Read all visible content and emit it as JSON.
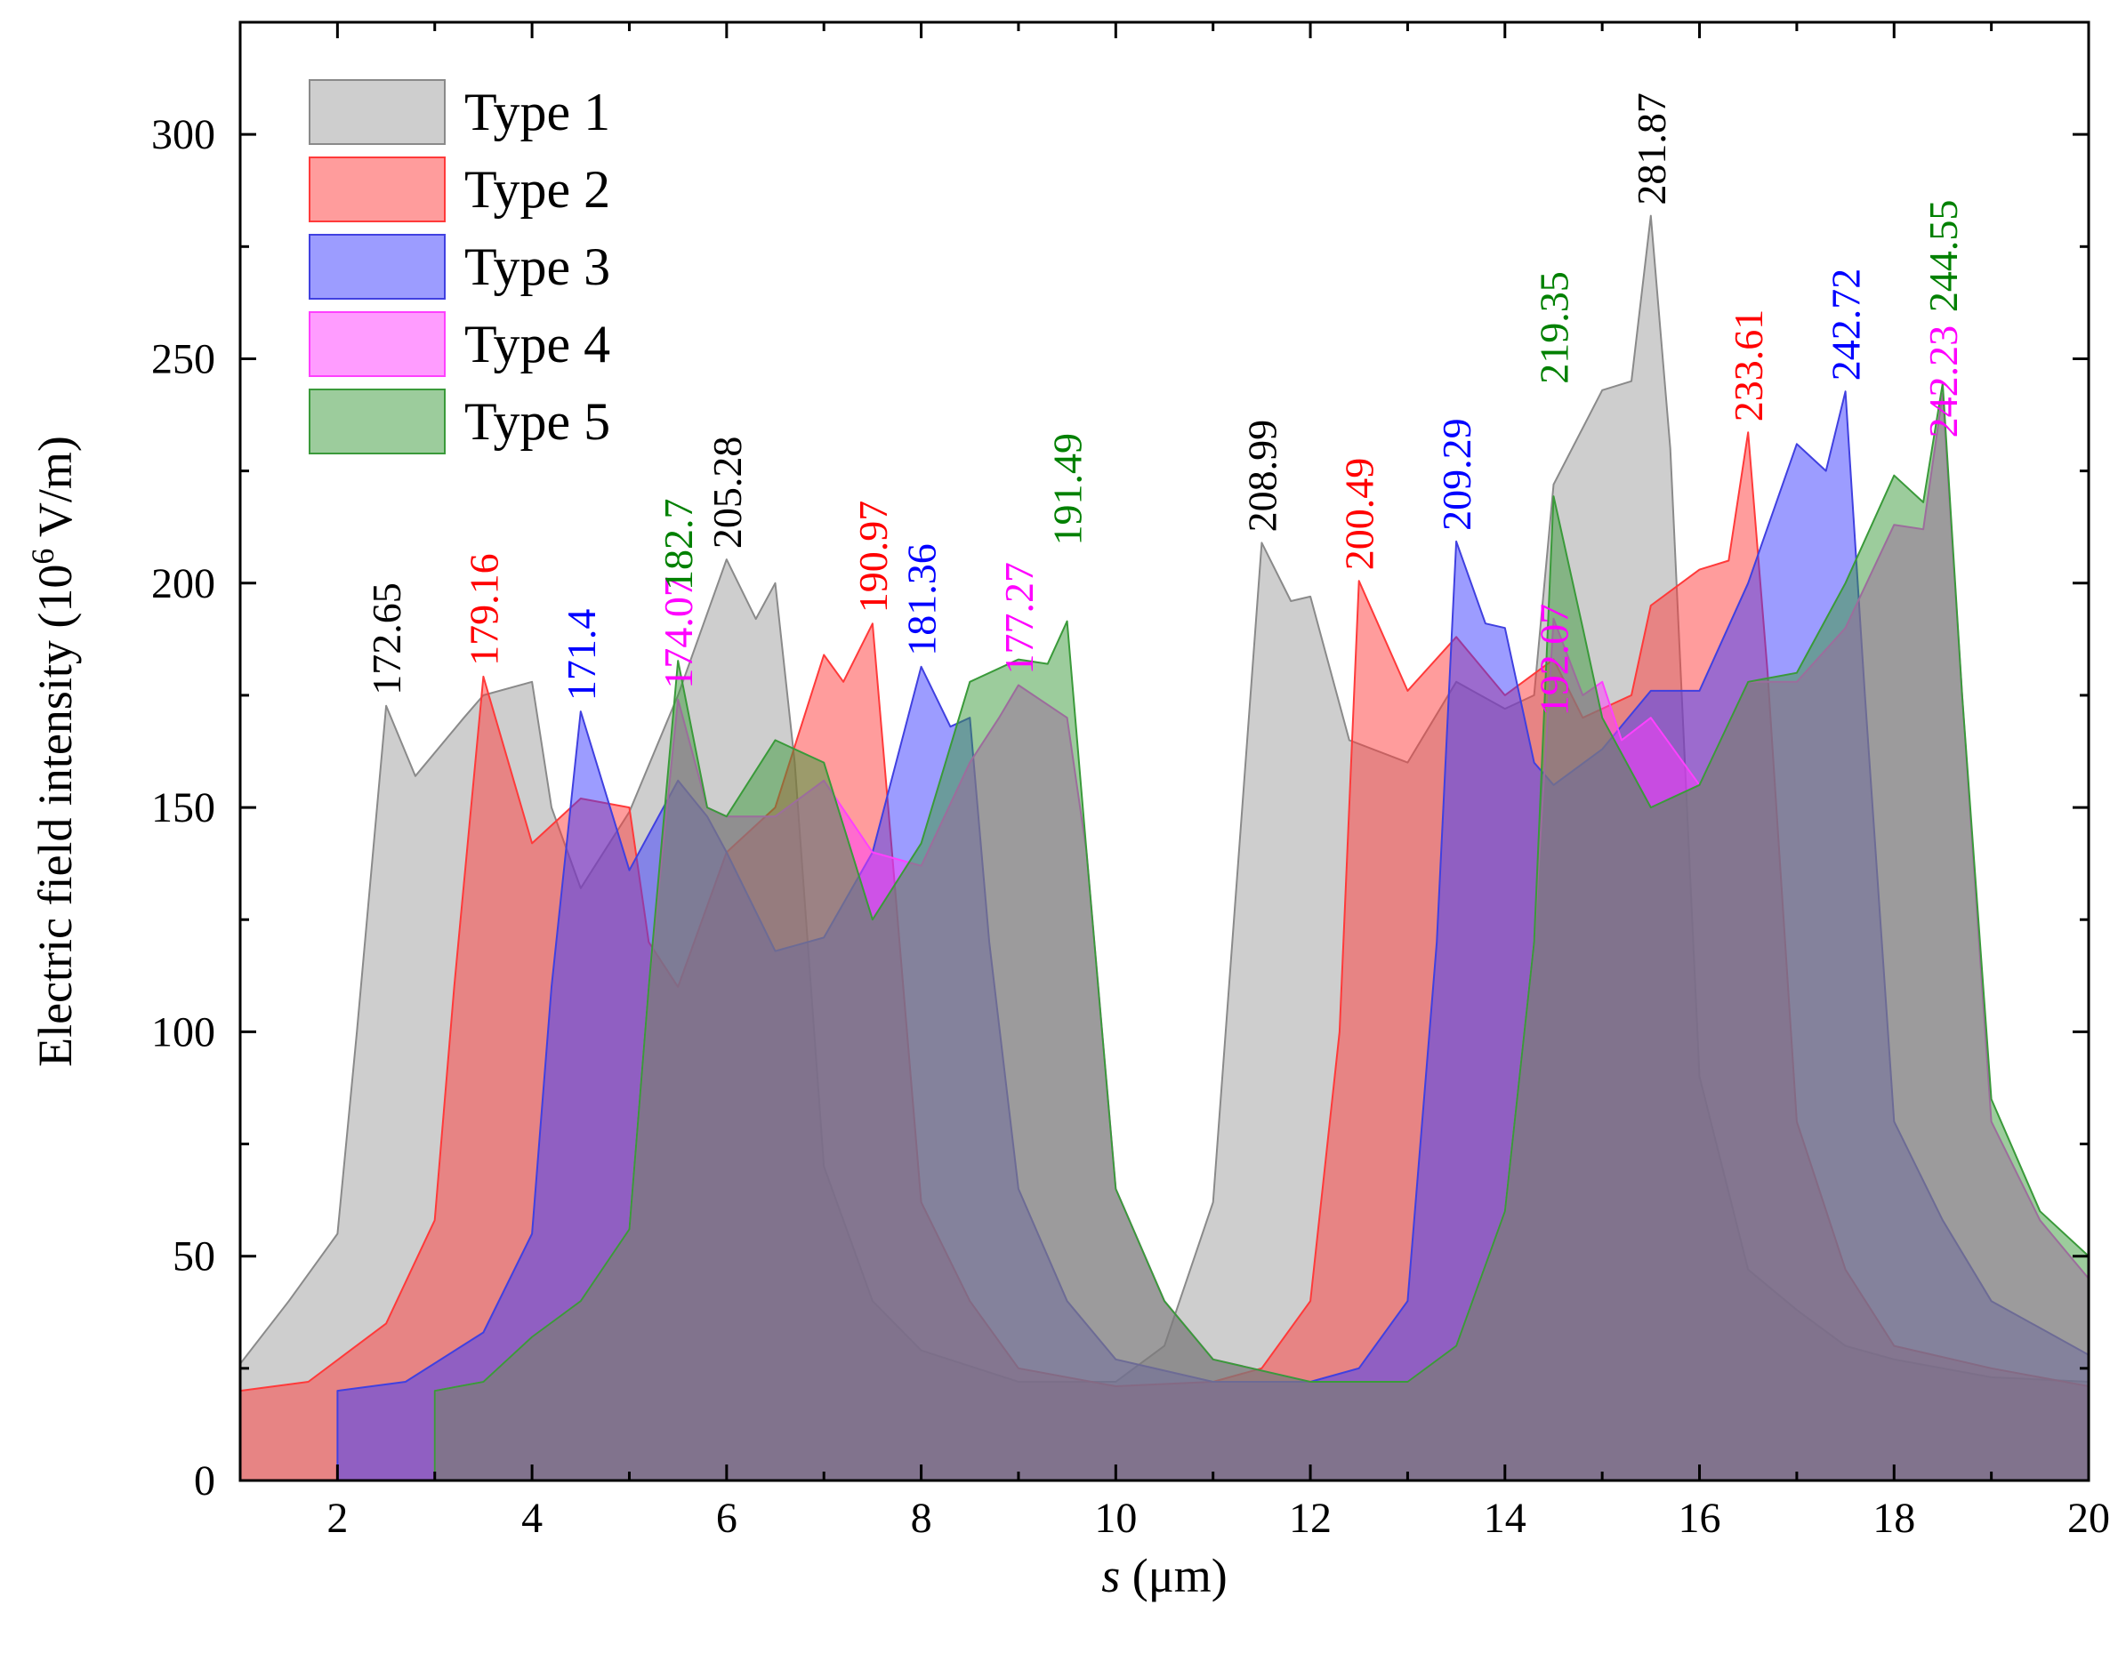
{
  "chart_data": {
    "type": "area",
    "xlabel_italic": "s",
    "xlabel_rest": " (μm)",
    "ylabel_main": "Electric field intensity (10",
    "ylabel_sup": "6",
    "ylabel_tail": " V/m)",
    "xlim": [
      1,
      20
    ],
    "ylim": [
      0,
      325
    ],
    "xticks": [
      2,
      4,
      6,
      8,
      10,
      12,
      14,
      16,
      18,
      20
    ],
    "yticks": [
      0,
      50,
      100,
      150,
      200,
      250,
      300
    ],
    "legend_position": "top-left",
    "series": [
      {
        "name": "Type 1",
        "fill": "#9e9e9e",
        "stroke": "#8a8a8a",
        "label_color": "#000000",
        "points": [
          [
            1,
            26
          ],
          [
            1.5,
            40
          ],
          [
            2,
            55
          ],
          [
            2.2,
            100
          ],
          [
            2.5,
            172.65
          ],
          [
            2.8,
            157
          ],
          [
            3.3,
            170
          ],
          [
            3.5,
            175
          ],
          [
            4,
            178
          ],
          [
            4.2,
            150
          ],
          [
            4.5,
            132
          ],
          [
            5,
            149
          ],
          [
            5.5,
            175
          ],
          [
            6,
            205.28
          ],
          [
            6.3,
            192
          ],
          [
            6.5,
            200
          ],
          [
            6.7,
            160
          ],
          [
            7,
            70
          ],
          [
            7.5,
            40
          ],
          [
            8,
            29
          ],
          [
            9,
            22
          ],
          [
            10,
            22
          ],
          [
            10.5,
            30
          ],
          [
            11,
            62
          ],
          [
            11.3,
            150
          ],
          [
            11.5,
            208.99
          ],
          [
            11.8,
            196
          ],
          [
            12,
            197
          ],
          [
            12.4,
            165
          ],
          [
            13,
            160
          ],
          [
            13.5,
            178
          ],
          [
            14,
            172
          ],
          [
            14.3,
            175
          ],
          [
            14.5,
            222
          ],
          [
            15,
            243
          ],
          [
            15.3,
            245
          ],
          [
            15.5,
            281.87
          ],
          [
            15.7,
            230
          ],
          [
            16,
            90
          ],
          [
            16.5,
            47
          ],
          [
            17,
            38
          ],
          [
            17.5,
            30
          ],
          [
            18,
            27
          ],
          [
            19,
            23
          ],
          [
            20,
            22
          ]
        ]
      },
      {
        "name": "Type 2",
        "fill": "#ff3a3a",
        "stroke": "#ff3a3a",
        "label_color": "#ff0000",
        "points": [
          [
            1,
            0
          ],
          [
            1,
            20
          ],
          [
            1.7,
            22
          ],
          [
            2.5,
            35
          ],
          [
            3,
            58
          ],
          [
            3.2,
            110
          ],
          [
            3.5,
            179.16
          ],
          [
            4,
            142
          ],
          [
            4.5,
            152
          ],
          [
            5,
            150
          ],
          [
            5.2,
            120
          ],
          [
            5.5,
            110
          ],
          [
            6,
            140
          ],
          [
            6.5,
            150
          ],
          [
            7,
            184
          ],
          [
            7.2,
            178
          ],
          [
            7.5,
            190.97
          ],
          [
            7.7,
            140
          ],
          [
            8,
            62
          ],
          [
            8.5,
            40
          ],
          [
            9,
            25
          ],
          [
            10,
            21
          ],
          [
            11,
            22
          ],
          [
            11.5,
            25
          ],
          [
            12,
            40
          ],
          [
            12.3,
            100
          ],
          [
            12.5,
            200.49
          ],
          [
            13,
            176
          ],
          [
            13.5,
            188
          ],
          [
            14,
            175
          ],
          [
            14.5,
            183
          ],
          [
            14.8,
            170
          ],
          [
            15.3,
            175
          ],
          [
            15.5,
            195
          ],
          [
            16,
            203
          ],
          [
            16.3,
            205
          ],
          [
            16.5,
            233.61
          ],
          [
            16.7,
            180
          ],
          [
            17,
            80
          ],
          [
            17.5,
            47
          ],
          [
            18,
            30
          ],
          [
            19,
            25
          ],
          [
            20,
            21
          ]
        ]
      },
      {
        "name": "Type 3",
        "fill": "#3a3aff",
        "stroke": "#4040e0",
        "label_color": "#0000ff",
        "points": [
          [
            2,
            0
          ],
          [
            2,
            20
          ],
          [
            2.7,
            22
          ],
          [
            3.5,
            33
          ],
          [
            4,
            55
          ],
          [
            4.2,
            110
          ],
          [
            4.5,
            171.4
          ],
          [
            5,
            136
          ],
          [
            5.5,
            156
          ],
          [
            5.8,
            148
          ],
          [
            6,
            140
          ],
          [
            6.5,
            118
          ],
          [
            7,
            121
          ],
          [
            7.5,
            140
          ],
          [
            8,
            181.36
          ],
          [
            8.3,
            168
          ],
          [
            8.5,
            170
          ],
          [
            8.7,
            120
          ],
          [
            9,
            65
          ],
          [
            9.5,
            40
          ],
          [
            10,
            27
          ],
          [
            11,
            22
          ],
          [
            12,
            22
          ],
          [
            12.5,
            25
          ],
          [
            13,
            40
          ],
          [
            13.3,
            120
          ],
          [
            13.5,
            209.29
          ],
          [
            13.8,
            191
          ],
          [
            14,
            190
          ],
          [
            14.3,
            160
          ],
          [
            14.5,
            155
          ],
          [
            15,
            163
          ],
          [
            15.5,
            176
          ],
          [
            16,
            176
          ],
          [
            16.5,
            200
          ],
          [
            17,
            231
          ],
          [
            17.3,
            225
          ],
          [
            17.5,
            242.72
          ],
          [
            17.7,
            175
          ],
          [
            18,
            80
          ],
          [
            18.5,
            58
          ],
          [
            19,
            40
          ],
          [
            20,
            28
          ]
        ]
      },
      {
        "name": "Type 4",
        "fill": "#ff3aff",
        "stroke": "#ff40ff",
        "label_color": "#ff00ff",
        "points": [
          [
            3,
            0
          ],
          [
            3,
            20
          ],
          [
            3.5,
            22
          ],
          [
            4,
            32
          ],
          [
            4.5,
            40
          ],
          [
            5,
            56
          ],
          [
            5.2,
            110
          ],
          [
            5.5,
            174.07
          ],
          [
            5.8,
            150
          ],
          [
            6,
            148
          ],
          [
            6.5,
            148
          ],
          [
            7,
            156
          ],
          [
            7.5,
            140
          ],
          [
            8,
            137
          ],
          [
            8.5,
            160
          ],
          [
            8.8,
            170
          ],
          [
            9,
            177.27
          ],
          [
            9.5,
            170
          ],
          [
            9.7,
            140
          ],
          [
            10,
            65
          ],
          [
            10.5,
            40
          ],
          [
            11,
            27
          ],
          [
            12,
            22
          ],
          [
            13,
            22
          ],
          [
            13.5,
            30
          ],
          [
            14,
            60
          ],
          [
            14.3,
            120
          ],
          [
            14.5,
            192.07
          ],
          [
            14.8,
            175
          ],
          [
            15,
            178
          ],
          [
            15.2,
            165
          ],
          [
            15.5,
            170
          ],
          [
            16,
            155
          ],
          [
            16.5,
            178
          ],
          [
            17,
            178
          ],
          [
            17.5,
            190
          ],
          [
            18,
            213
          ],
          [
            18.3,
            212
          ],
          [
            18.5,
            242.23
          ],
          [
            18.7,
            175
          ],
          [
            19,
            80
          ],
          [
            19.5,
            58
          ],
          [
            20,
            45
          ]
        ]
      },
      {
        "name": "Type 5",
        "fill": "#3a9a3a",
        "stroke": "#3a9a3a",
        "label_color": "#008000",
        "points": [
          [
            3,
            0
          ],
          [
            3,
            20
          ],
          [
            3.5,
            22
          ],
          [
            4,
            32
          ],
          [
            4.5,
            40
          ],
          [
            5,
            56
          ],
          [
            5.2,
            110
          ],
          [
            5.5,
            182.7
          ],
          [
            5.8,
            150
          ],
          [
            6,
            148
          ],
          [
            6.5,
            165
          ],
          [
            7,
            160
          ],
          [
            7.5,
            125
          ],
          [
            8,
            142
          ],
          [
            8.5,
            178
          ],
          [
            9,
            183
          ],
          [
            9.3,
            182
          ],
          [
            9.5,
            191.49
          ],
          [
            9.7,
            140
          ],
          [
            10,
            65
          ],
          [
            10.5,
            40
          ],
          [
            11,
            27
          ],
          [
            12,
            22
          ],
          [
            13,
            22
          ],
          [
            13.5,
            30
          ],
          [
            14,
            60
          ],
          [
            14.3,
            120
          ],
          [
            14.5,
            219.35
          ],
          [
            14.8,
            190
          ],
          [
            15,
            170
          ],
          [
            15.5,
            150
          ],
          [
            16,
            155
          ],
          [
            16.5,
            178
          ],
          [
            17,
            180
          ],
          [
            17.5,
            200
          ],
          [
            18,
            224
          ],
          [
            18.3,
            218
          ],
          [
            18.5,
            244.55
          ],
          [
            18.7,
            175
          ],
          [
            19,
            85
          ],
          [
            19.5,
            60
          ],
          [
            20,
            50
          ]
        ]
      }
    ],
    "peak_labels": [
      {
        "text": "172.65",
        "series": 0,
        "x": 2.5,
        "y": 172.65
      },
      {
        "text": "179.16",
        "series": 1,
        "x": 3.5,
        "y": 179.16
      },
      {
        "text": "171.4",
        "series": 2,
        "x": 4.5,
        "y": 171.4
      },
      {
        "text": "174.07",
        "series": 3,
        "x": 5.5,
        "y": 174.07
      },
      {
        "text": "182.7",
        "series": 4,
        "x": 5.5,
        "y": 196
      },
      {
        "text": "205.28",
        "series": 0,
        "x": 6.0,
        "y": 205.28
      },
      {
        "text": "190.97",
        "series": 1,
        "x": 7.5,
        "y": 190.97
      },
      {
        "text": "181.36",
        "series": 2,
        "x": 8.0,
        "y": 181.36
      },
      {
        "text": "177.27",
        "series": 3,
        "x": 9.0,
        "y": 177.27
      },
      {
        "text": "191.49",
        "series": 4,
        "x": 9.5,
        "y": 206
      },
      {
        "text": "208.99",
        "series": 0,
        "x": 11.5,
        "y": 208.99
      },
      {
        "text": "200.49",
        "series": 1,
        "x": 12.5,
        "y": 200.49
      },
      {
        "text": "209.29",
        "series": 2,
        "x": 13.5,
        "y": 209.29
      },
      {
        "text": "192.07",
        "series": 3,
        "x": 14.5,
        "y": 168
      },
      {
        "text": "219.35",
        "series": 4,
        "x": 14.5,
        "y": 242
      },
      {
        "text": "281.87",
        "series": 0,
        "x": 15.5,
        "y": 281.87
      },
      {
        "text": "233.61",
        "series": 1,
        "x": 16.5,
        "y": 233.61
      },
      {
        "text": "242.72",
        "series": 2,
        "x": 17.5,
        "y": 242.72
      },
      {
        "text": "242.23",
        "series": 3,
        "x": 18.5,
        "y": 230
      },
      {
        "text": "244.55",
        "series": 4,
        "x": 18.5,
        "y": 258
      }
    ]
  }
}
